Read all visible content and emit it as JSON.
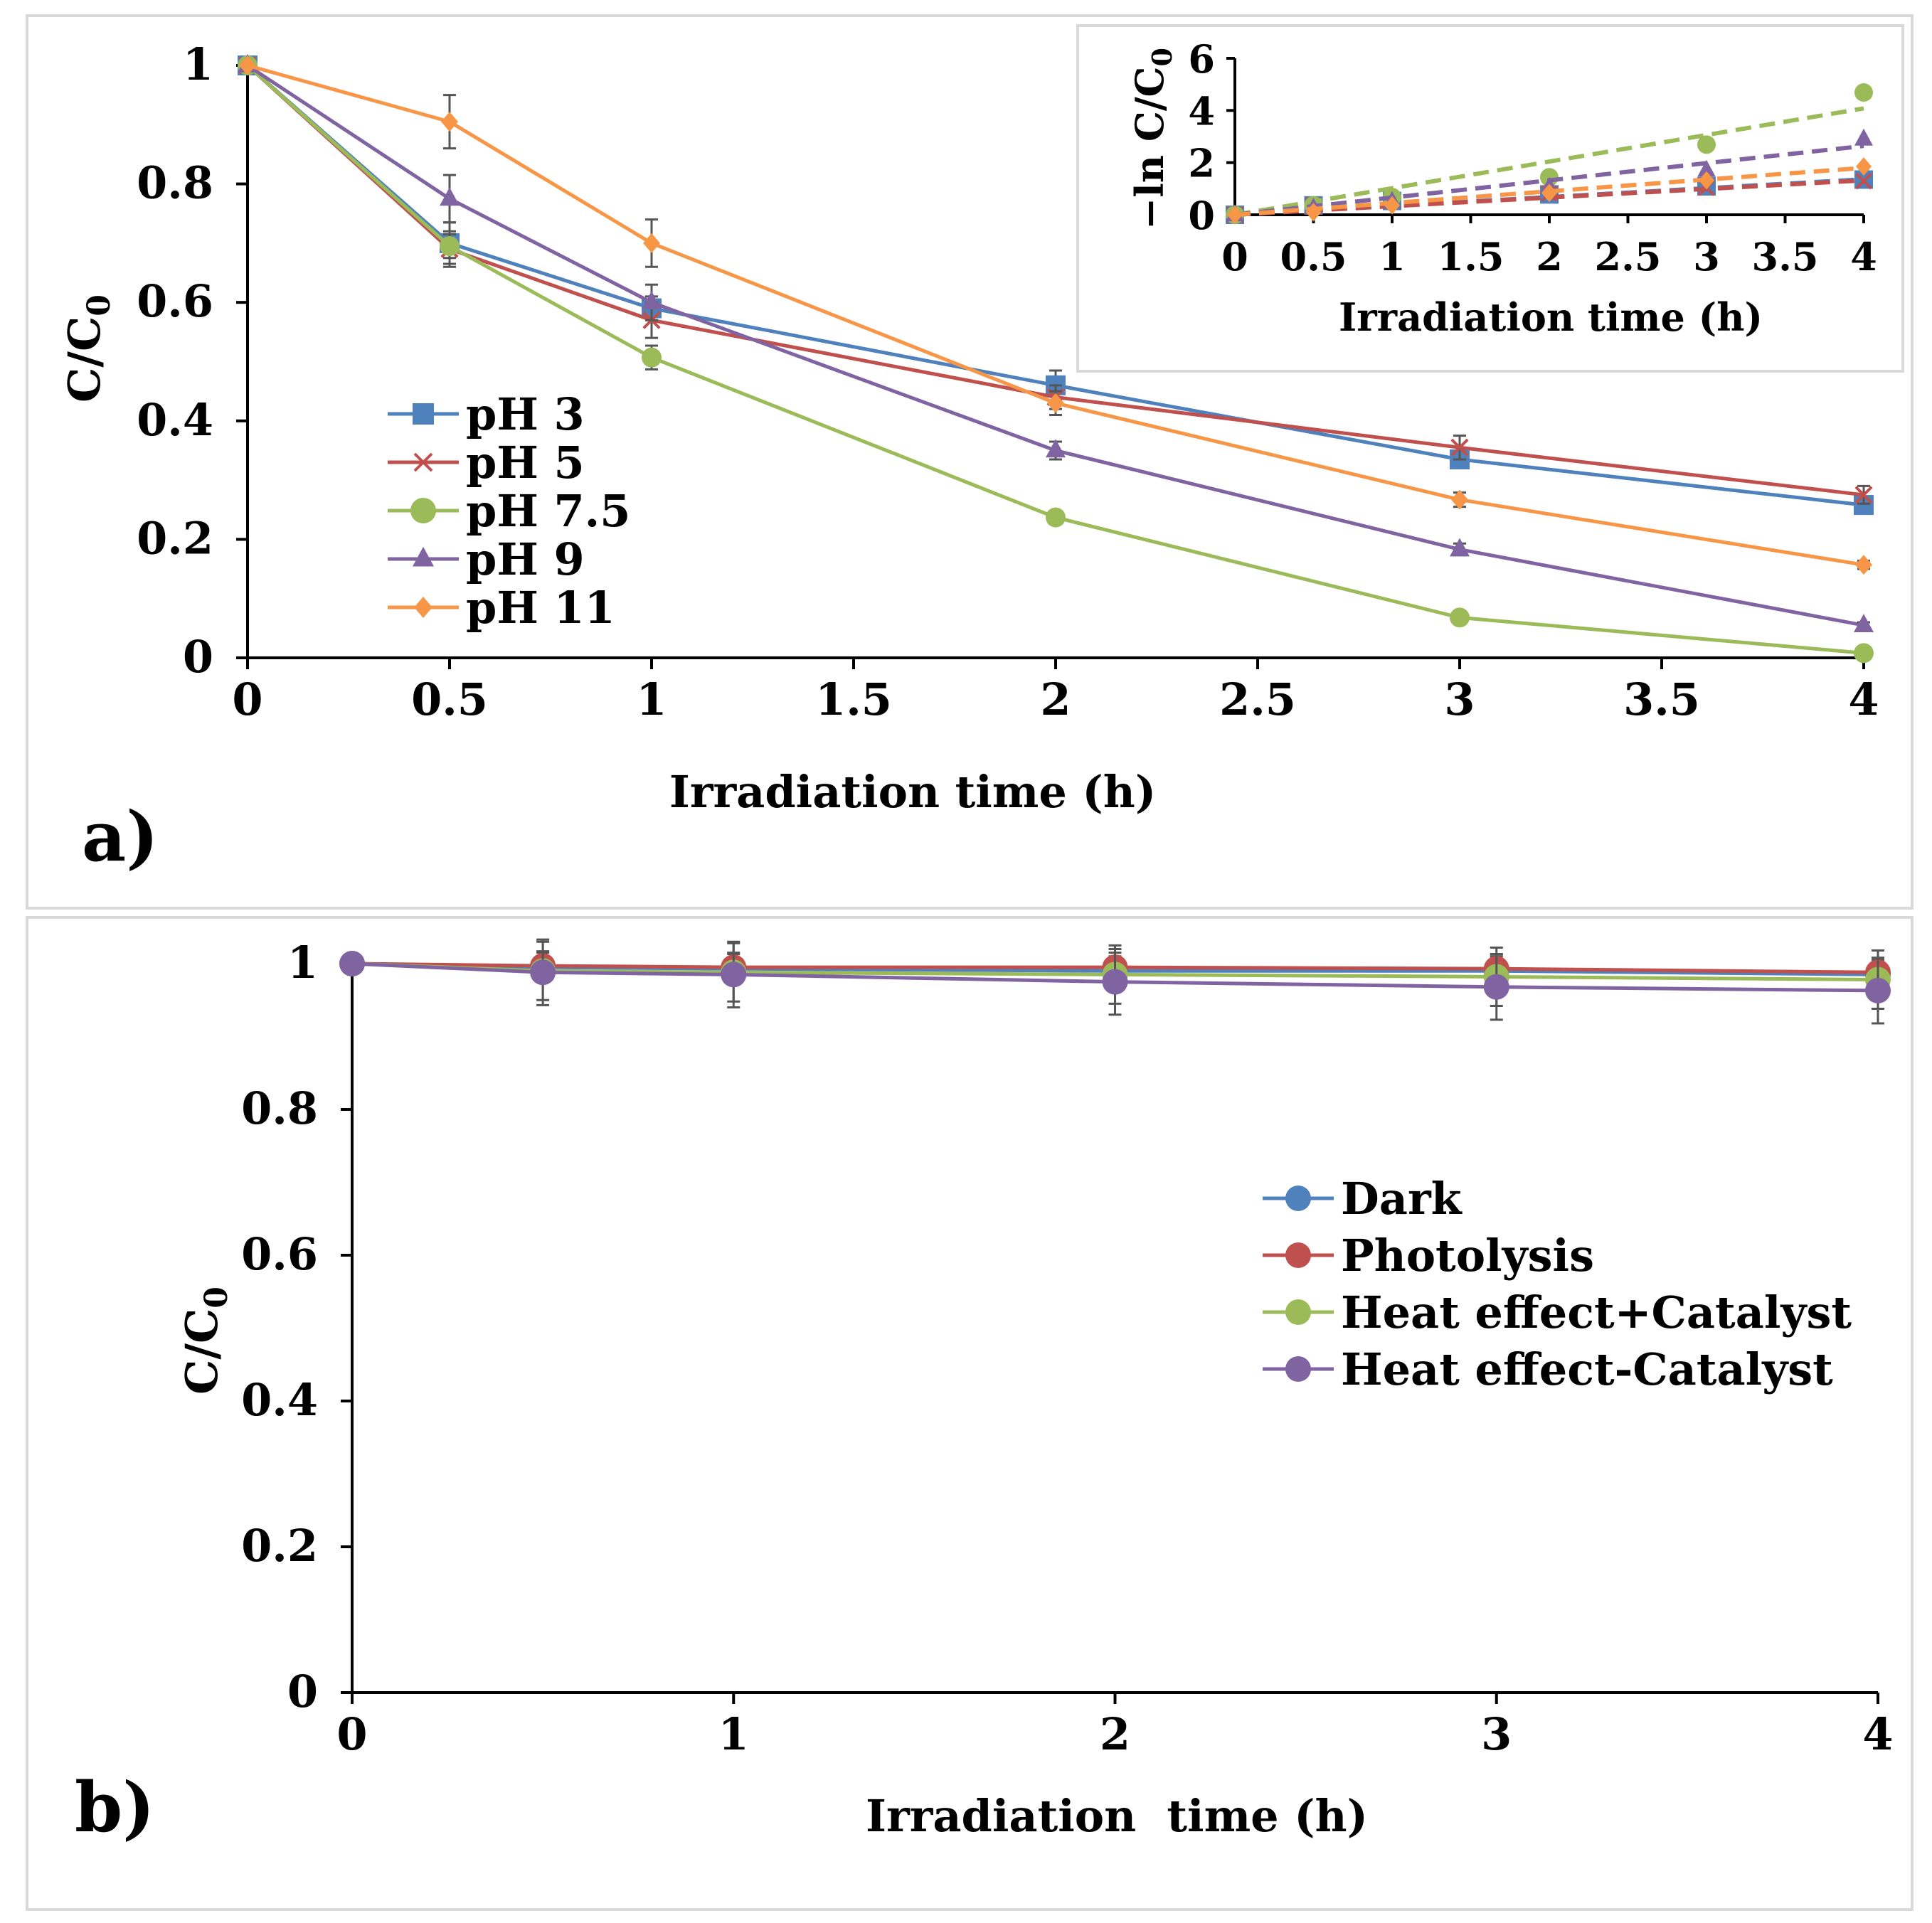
{
  "colors": {
    "blue": "#4f81bd",
    "red": "#c0504d",
    "green": "#9bbb59",
    "purple": "#8064a2",
    "orange": "#f79646",
    "axis": "#000000",
    "errorbar": "#555555",
    "frame": "#d9d9d9"
  },
  "panel_labels": {
    "a": "a)",
    "b": "b)"
  },
  "chart_data": [
    {
      "id": "panel-a",
      "type": "line",
      "title": "",
      "xlabel": "Irradiation time (h)",
      "ylabel_main": "C/C",
      "ylabel_sub": "0",
      "xlim": [
        0,
        4
      ],
      "ylim": [
        0,
        1
      ],
      "x_ticks": [
        "0",
        "0.5",
        "1",
        "1.5",
        "2",
        "2.5",
        "3",
        "3.5",
        "4"
      ],
      "y_ticks": [
        "0",
        "0.2",
        "0.4",
        "0.6",
        "0.8",
        "1"
      ],
      "x_tick_values": [
        0,
        0.5,
        1,
        1.5,
        2,
        2.5,
        3,
        3.5,
        4
      ],
      "y_tick_values": [
        0,
        0.2,
        0.4,
        0.6,
        0.8,
        1
      ],
      "legend_position": "center-left",
      "x": [
        0,
        0.5,
        1,
        2,
        3,
        4
      ],
      "series": [
        {
          "name": "pH 3",
          "color": "#4f81bd",
          "marker": "square",
          "values": [
            1,
            0.7,
            0.59,
            0.46,
            0.335,
            0.258
          ],
          "errors": [
            0,
            0.035,
            0.02,
            0.025,
            0.01,
            0.012
          ]
        },
        {
          "name": "pH 5",
          "color": "#c0504d",
          "marker": "x",
          "values": [
            1,
            0.69,
            0.57,
            0.44,
            0.355,
            0.275
          ],
          "errors": [
            0,
            0.03,
            0.03,
            0.02,
            0.02,
            0.015
          ]
        },
        {
          "name": "pH 7.5",
          "color": "#9bbb59",
          "marker": "circle",
          "values": [
            1,
            0.695,
            0.507,
            0.237,
            0.068,
            0.008
          ],
          "errors": [
            0,
            0.02,
            0.02,
            0.01,
            0.005,
            0.003
          ]
        },
        {
          "name": "pH 9",
          "color": "#8064a2",
          "marker": "triangle",
          "values": [
            1,
            0.775,
            0.6,
            0.35,
            0.183,
            0.055
          ],
          "errors": [
            0,
            0.04,
            0.03,
            0.015,
            0.01,
            0.005
          ]
        },
        {
          "name": "pH 11",
          "color": "#f79646",
          "marker": "diamond",
          "values": [
            1,
            0.905,
            0.7,
            0.43,
            0.267,
            0.157
          ],
          "errors": [
            0,
            0.045,
            0.04,
            0.02,
            0.012,
            0.007
          ]
        }
      ],
      "inset": {
        "type": "scatter",
        "xlabel": "Irradiation time (h)",
        "ylabel": "−ln C/C",
        "ylabel_sub": "0",
        "xlim": [
          0,
          4
        ],
        "ylim": [
          0,
          6
        ],
        "x_ticks": [
          "0",
          "0.5",
          "1",
          "1.5",
          "2",
          "2.5",
          "3",
          "3.5",
          "4"
        ],
        "y_ticks": [
          "0",
          "2",
          "4",
          "6"
        ],
        "x_tick_values": [
          0,
          0.5,
          1,
          1.5,
          2,
          2.5,
          3,
          3.5,
          4
        ],
        "y_tick_values": [
          0,
          2,
          4,
          6
        ],
        "x": [
          0,
          0.5,
          1,
          2,
          3,
          4
        ],
        "series": [
          {
            "name": "pH 3",
            "color": "#4f81bd",
            "marker": "square",
            "values": [
              0,
              0.36,
              0.53,
              0.78,
              1.09,
              1.35
            ],
            "fit_slope": 0.34
          },
          {
            "name": "pH 5",
            "color": "#c0504d",
            "marker": "x",
            "values": [
              0,
              0.37,
              0.56,
              0.82,
              1.04,
              1.29
            ],
            "fit_slope": 0.33
          },
          {
            "name": "pH 7.5",
            "color": "#9bbb59",
            "marker": "circle",
            "values": [
              0,
              0.36,
              0.68,
              1.44,
              2.69,
              4.69
            ],
            "fit_slope": 1.02
          },
          {
            "name": "pH 9",
            "color": "#8064a2",
            "marker": "triangle",
            "values": [
              0,
              0.25,
              0.51,
              1.05,
              1.7,
              2.9
            ],
            "fit_slope": 0.66
          },
          {
            "name": "pH 11",
            "color": "#f79646",
            "marker": "diamond",
            "values": [
              0,
              0.1,
              0.36,
              0.84,
              1.32,
              1.85
            ],
            "fit_slope": 0.45
          }
        ]
      }
    },
    {
      "id": "panel-b",
      "type": "line",
      "title": "",
      "xlabel": "Irradiation  time (h)",
      "ylabel_main": "C/C",
      "ylabel_sub": "0",
      "xlim": [
        0,
        4
      ],
      "ylim": [
        0,
        1
      ],
      "x_ticks": [
        "0",
        "1",
        "2",
        "3",
        "4"
      ],
      "y_ticks": [
        "0",
        "0.2",
        "0.4",
        "0.6",
        "0.8",
        "1"
      ],
      "x_tick_values": [
        0,
        1,
        2,
        3,
        4
      ],
      "y_tick_values": [
        0,
        0.2,
        0.4,
        0.6,
        0.8,
        1
      ],
      "legend_position": "center-right",
      "x": [
        0,
        0.5,
        1,
        2,
        3,
        4
      ],
      "series": [
        {
          "name": "Dark",
          "color": "#4f81bd",
          "marker": "circle",
          "values": [
            1,
            0.995,
            0.993,
            0.99,
            0.99,
            0.985
          ],
          "errors": [
            0,
            0.02,
            0.02,
            0.02,
            0.02,
            0.02
          ]
        },
        {
          "name": "Photolysis",
          "color": "#c0504d",
          "marker": "circle",
          "values": [
            1,
            0.997,
            0.995,
            0.995,
            0.993,
            0.988
          ],
          "errors": [
            0,
            0.02,
            0.02,
            0.02,
            0.02,
            0.02
          ]
        },
        {
          "name": "Heat effect+Catalyst",
          "color": "#9bbb59",
          "marker": "circle",
          "values": [
            1,
            0.99,
            0.988,
            0.985,
            0.982,
            0.978
          ],
          "errors": [
            0,
            0.04,
            0.04,
            0.04,
            0.04,
            0.04
          ]
        },
        {
          "name": "Heat effect-Catalyst",
          "color": "#8064a2",
          "marker": "circle",
          "values": [
            1,
            0.988,
            0.985,
            0.975,
            0.968,
            0.963
          ],
          "errors": [
            0,
            0.045,
            0.045,
            0.045,
            0.045,
            0.045
          ]
        }
      ]
    }
  ]
}
